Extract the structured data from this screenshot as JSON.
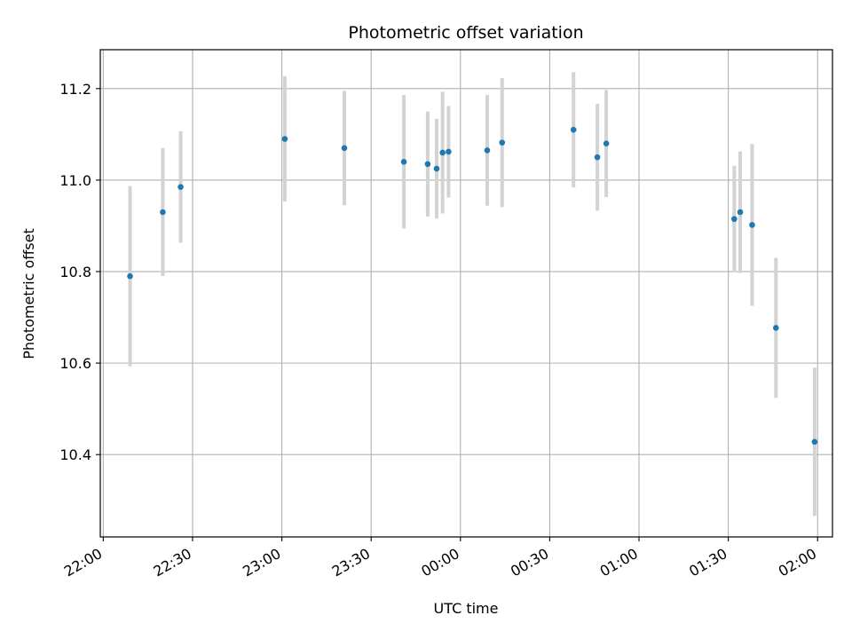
{
  "chart_data": {
    "type": "scatter",
    "title": "Photometric offset variation",
    "xlabel": "UTC time",
    "ylabel": "Photometric offset",
    "grid": true,
    "xlim": [
      "21:59:00",
      "02:05:00"
    ],
    "ylim": [
      10.22,
      11.285
    ],
    "x_ticks": [
      "22:00",
      "22:30",
      "23:00",
      "23:30",
      "00:00",
      "00:30",
      "01:00",
      "01:30",
      "02:00"
    ],
    "y_ticks": [
      10.4,
      10.6,
      10.8,
      11.0,
      11.2
    ],
    "colors": {
      "points": "#1f77b4",
      "errorbars": "#d3d3d3",
      "grid": "#b0b0b0"
    },
    "series": [
      {
        "points": [
          {
            "time": "22:09",
            "y": 10.79,
            "err": 0.197
          },
          {
            "time": "22:20",
            "y": 10.93,
            "err": 0.14
          },
          {
            "time": "22:26",
            "y": 10.985,
            "err": 0.122
          },
          {
            "time": "23:01",
            "y": 11.09,
            "err": 0.137
          },
          {
            "time": "23:21",
            "y": 11.07,
            "err": 0.125
          },
          {
            "time": "23:41",
            "y": 11.04,
            "err": 0.146
          },
          {
            "time": "23:49",
            "y": 11.035,
            "err": 0.115
          },
          {
            "time": "23:52",
            "y": 11.025,
            "err": 0.109
          },
          {
            "time": "23:54",
            "y": 11.06,
            "err": 0.133
          },
          {
            "time": "23:56",
            "y": 11.062,
            "err": 0.1
          },
          {
            "time": "00:09",
            "y": 11.065,
            "err": 0.121
          },
          {
            "time": "00:14",
            "y": 11.082,
            "err": 0.141
          },
          {
            "time": "00:38",
            "y": 11.11,
            "err": 0.126
          },
          {
            "time": "00:46",
            "y": 11.05,
            "err": 0.117
          },
          {
            "time": "00:49",
            "y": 11.08,
            "err": 0.117
          },
          {
            "time": "01:32",
            "y": 10.915,
            "err": 0.116
          },
          {
            "time": "01:34",
            "y": 10.93,
            "err": 0.133
          },
          {
            "time": "01:38",
            "y": 10.902,
            "err": 0.177
          },
          {
            "time": "01:46",
            "y": 10.677,
            "err": 0.153
          },
          {
            "time": "01:59",
            "y": 10.428,
            "err": 0.162
          }
        ]
      }
    ]
  }
}
